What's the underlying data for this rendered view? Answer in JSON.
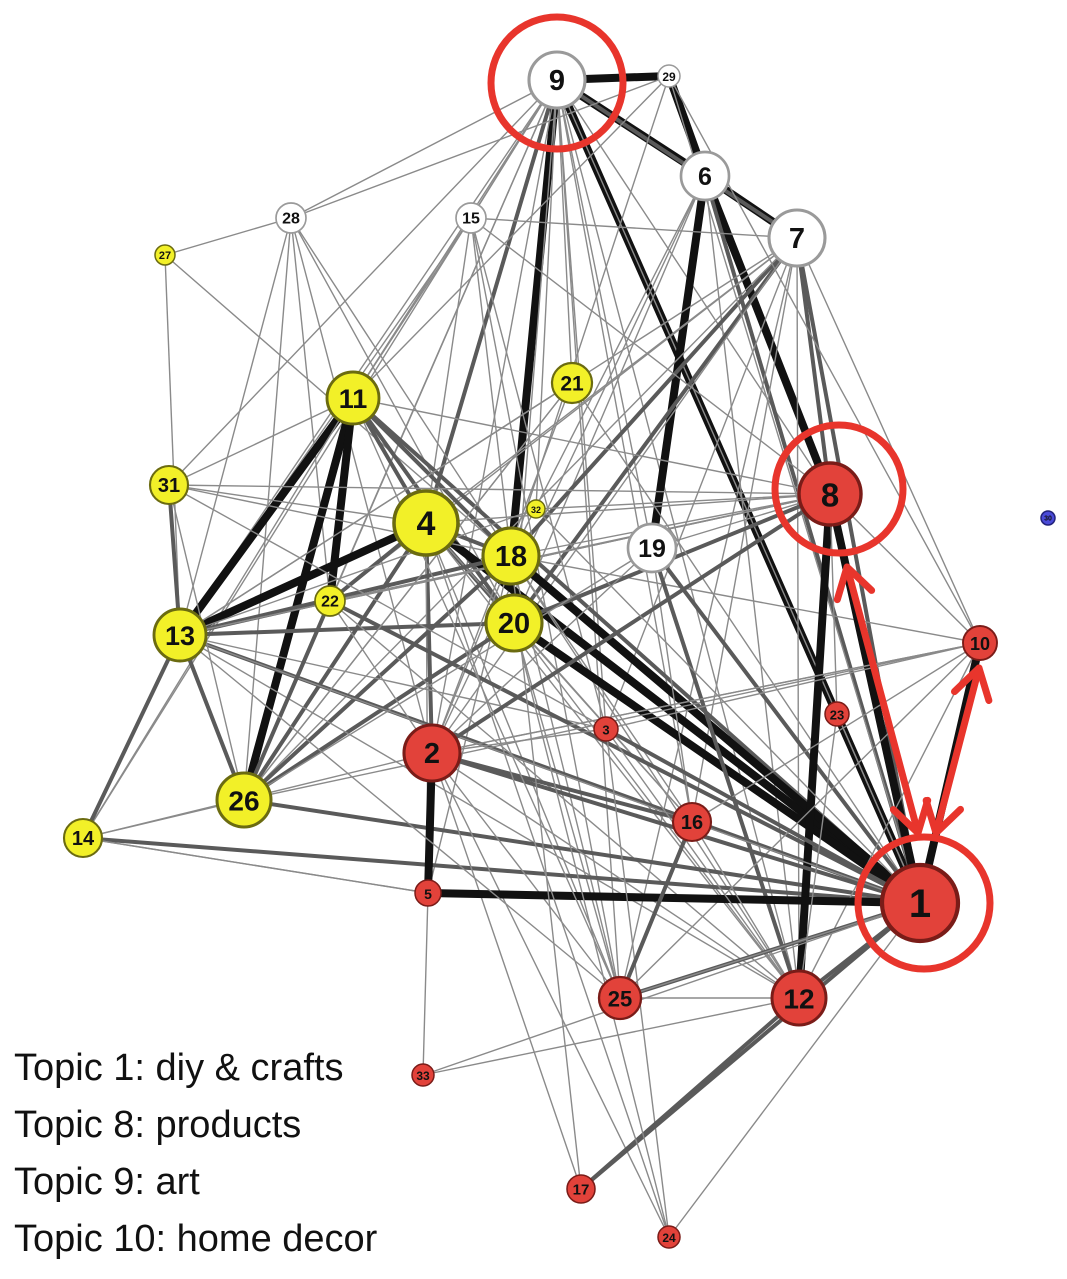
{
  "colors": {
    "yellow": "#f2f028",
    "red": "#e2423a",
    "white": "#ffffff",
    "blue": "#4a4ad8",
    "highlight": "#e8352c"
  },
  "nodes": [
    {
      "id": "1",
      "label": "1",
      "group": "red"
    },
    {
      "id": "2",
      "label": "2",
      "group": "red"
    },
    {
      "id": "3",
      "label": "3",
      "group": "red"
    },
    {
      "id": "4",
      "label": "4",
      "group": "yellow"
    },
    {
      "id": "5",
      "label": "5",
      "group": "red"
    },
    {
      "id": "6",
      "label": "6",
      "group": "white"
    },
    {
      "id": "7",
      "label": "7",
      "group": "white"
    },
    {
      "id": "8",
      "label": "8",
      "group": "red"
    },
    {
      "id": "9",
      "label": "9",
      "group": "white"
    },
    {
      "id": "10",
      "label": "10",
      "group": "red"
    },
    {
      "id": "11",
      "label": "11",
      "group": "yellow"
    },
    {
      "id": "12",
      "label": "12",
      "group": "red"
    },
    {
      "id": "13",
      "label": "13",
      "group": "yellow"
    },
    {
      "id": "14",
      "label": "14",
      "group": "yellow"
    },
    {
      "id": "15",
      "label": "15",
      "group": "white"
    },
    {
      "id": "16",
      "label": "16",
      "group": "red"
    },
    {
      "id": "17",
      "label": "17",
      "group": "red"
    },
    {
      "id": "18",
      "label": "18",
      "group": "yellow"
    },
    {
      "id": "19",
      "label": "19",
      "group": "white"
    },
    {
      "id": "20",
      "label": "20",
      "group": "yellow"
    },
    {
      "id": "21",
      "label": "21",
      "group": "yellow"
    },
    {
      "id": "22",
      "label": "22",
      "group": "yellow"
    },
    {
      "id": "23",
      "label": "23",
      "group": "red"
    },
    {
      "id": "24",
      "label": "24",
      "group": "red"
    },
    {
      "id": "25",
      "label": "25",
      "group": "red"
    },
    {
      "id": "26",
      "label": "26",
      "group": "yellow"
    },
    {
      "id": "27",
      "label": "27",
      "group": "yellow"
    },
    {
      "id": "28",
      "label": "28",
      "group": "white"
    },
    {
      "id": "29",
      "label": "29",
      "group": "white"
    },
    {
      "id": "30",
      "label": "30",
      "group": "blue"
    },
    {
      "id": "31",
      "label": "31",
      "group": "yellow"
    },
    {
      "id": "32",
      "label": "32",
      "group": "yellow"
    },
    {
      "id": "33",
      "label": "33",
      "group": "red"
    }
  ],
  "edges": [
    [
      "9",
      "29",
      3
    ],
    [
      "29",
      "6",
      3
    ],
    [
      "9",
      "6",
      3
    ],
    [
      "6",
      "7",
      3
    ],
    [
      "9",
      "7",
      2
    ],
    [
      "9",
      "18",
      3
    ],
    [
      "9",
      "1",
      3
    ],
    [
      "9",
      "4",
      2
    ],
    [
      "9",
      "11",
      1
    ],
    [
      "9",
      "13",
      1
    ],
    [
      "9",
      "22",
      1
    ],
    [
      "9",
      "28",
      1
    ],
    [
      "9",
      "15",
      1
    ],
    [
      "9",
      "31",
      1
    ],
    [
      "9",
      "20",
      1
    ],
    [
      "9",
      "21",
      1
    ],
    [
      "9",
      "19",
      1
    ],
    [
      "9",
      "2",
      1
    ],
    [
      "9",
      "26",
      1
    ],
    [
      "9",
      "8",
      1
    ],
    [
      "9",
      "16",
      1
    ],
    [
      "9",
      "12",
      1
    ],
    [
      "9",
      "25",
      1
    ],
    [
      "9",
      "3",
      1
    ],
    [
      "9",
      "23",
      1
    ],
    [
      "9",
      "32",
      1
    ],
    [
      "9",
      "14",
      1
    ],
    [
      "6",
      "19",
      3
    ],
    [
      "6",
      "8",
      3
    ],
    [
      "6",
      "1",
      2
    ],
    [
      "6",
      "18",
      1
    ],
    [
      "6",
      "2",
      1
    ],
    [
      "6",
      "20",
      1
    ],
    [
      "6",
      "12",
      1
    ],
    [
      "7",
      "8",
      2
    ],
    [
      "7",
      "1",
      2
    ],
    [
      "7",
      "10",
      1
    ],
    [
      "7",
      "18",
      2
    ],
    [
      "7",
      "20",
      2
    ],
    [
      "7",
      "4",
      1
    ],
    [
      "7",
      "13",
      1
    ],
    [
      "7",
      "22",
      1
    ],
    [
      "7",
      "2",
      1
    ],
    [
      "7",
      "16",
      1
    ],
    [
      "7",
      "25",
      1
    ],
    [
      "7",
      "26",
      1
    ],
    [
      "7",
      "3",
      1
    ],
    [
      "7",
      "12",
      1
    ],
    [
      "7",
      "15",
      1
    ],
    [
      "29",
      "1",
      1
    ],
    [
      "29",
      "18",
      1
    ],
    [
      "29",
      "28",
      1
    ],
    [
      "29",
      "11",
      1
    ],
    [
      "29",
      "10",
      1
    ],
    [
      "28",
      "27",
      1
    ],
    [
      "28",
      "13",
      1
    ],
    [
      "28",
      "26",
      1
    ],
    [
      "28",
      "18",
      1
    ],
    [
      "28",
      "20",
      1
    ],
    [
      "28",
      "2",
      1
    ],
    [
      "28",
      "22",
      1
    ],
    [
      "15",
      "4",
      1
    ],
    [
      "15",
      "11",
      1
    ],
    [
      "15",
      "18",
      1
    ],
    [
      "15",
      "13",
      1
    ],
    [
      "15",
      "25",
      1
    ],
    [
      "15",
      "3",
      1
    ],
    [
      "15",
      "8",
      1
    ],
    [
      "27",
      "13",
      1
    ],
    [
      "27",
      "18",
      1
    ],
    [
      "11",
      "13",
      3
    ],
    [
      "11",
      "26",
      3
    ],
    [
      "11",
      "22",
      3
    ],
    [
      "11",
      "4",
      2
    ],
    [
      "11",
      "18",
      2
    ],
    [
      "11",
      "20",
      2
    ],
    [
      "11",
      "8",
      1
    ],
    [
      "11",
      "1",
      2
    ],
    [
      "11",
      "14",
      1
    ],
    [
      "11",
      "31",
      1
    ],
    [
      "4",
      "13",
      3
    ],
    [
      "4",
      "26",
      2
    ],
    [
      "4",
      "1",
      3
    ],
    [
      "4",
      "18",
      2
    ],
    [
      "4",
      "20",
      2
    ],
    [
      "4",
      "2",
      2
    ],
    [
      "4",
      "16",
      1
    ],
    [
      "4",
      "12",
      1
    ],
    [
      "4",
      "22",
      2
    ],
    [
      "4",
      "31",
      1
    ],
    [
      "4",
      "8",
      1
    ],
    [
      "4",
      "25",
      1
    ],
    [
      "4",
      "5",
      1
    ],
    [
      "18",
      "1",
      3
    ],
    [
      "18",
      "13",
      2
    ],
    [
      "18",
      "8",
      1
    ],
    [
      "18",
      "26",
      2
    ],
    [
      "18",
      "2",
      1
    ],
    [
      "18",
      "16",
      1
    ],
    [
      "18",
      "31",
      1
    ],
    [
      "18",
      "25",
      1
    ],
    [
      "18",
      "10",
      1
    ],
    [
      "18",
      "5",
      1
    ],
    [
      "18",
      "12",
      1
    ],
    [
      "20",
      "1",
      3
    ],
    [
      "20",
      "13",
      2
    ],
    [
      "20",
      "26",
      2
    ],
    [
      "20",
      "8",
      2
    ],
    [
      "20",
      "12",
      1
    ],
    [
      "20",
      "25",
      1
    ],
    [
      "20",
      "16",
      1
    ],
    [
      "13",
      "31",
      2
    ],
    [
      "13",
      "26",
      2
    ],
    [
      "13",
      "14",
      2
    ],
    [
      "13",
      "1",
      2
    ],
    [
      "13",
      "16",
      1
    ],
    [
      "13",
      "3",
      1
    ],
    [
      "13",
      "22",
      2
    ],
    [
      "13",
      "8",
      1
    ],
    [
      "13",
      "12",
      1
    ],
    [
      "31",
      "26",
      1
    ],
    [
      "31",
      "8",
      1
    ],
    [
      "31",
      "1",
      1
    ],
    [
      "22",
      "26",
      2
    ],
    [
      "22",
      "8",
      1
    ],
    [
      "22",
      "1",
      2
    ],
    [
      "22",
      "12",
      1
    ],
    [
      "22",
      "2",
      1
    ],
    [
      "26",
      "14",
      1
    ],
    [
      "26",
      "1",
      2
    ],
    [
      "26",
      "10",
      1
    ],
    [
      "26",
      "19",
      1
    ],
    [
      "26",
      "21",
      1
    ],
    [
      "14",
      "1",
      2
    ],
    [
      "14",
      "5",
      1
    ],
    [
      "14",
      "2",
      1
    ],
    [
      "21",
      "13",
      1
    ],
    [
      "21",
      "26",
      1
    ],
    [
      "21",
      "1",
      1
    ],
    [
      "21",
      "2",
      1
    ],
    [
      "19",
      "1",
      2
    ],
    [
      "19",
      "8",
      1
    ],
    [
      "19",
      "12",
      2
    ],
    [
      "19",
      "2",
      1
    ],
    [
      "19",
      "16",
      1
    ],
    [
      "8",
      "1",
      3
    ],
    [
      "8",
      "12",
      3
    ],
    [
      "8",
      "2",
      2
    ],
    [
      "8",
      "13",
      1
    ],
    [
      "8",
      "10",
      1
    ],
    [
      "8",
      "23",
      1
    ],
    [
      "8",
      "32",
      1
    ],
    [
      "10",
      "1",
      3
    ],
    [
      "10",
      "12",
      1
    ],
    [
      "10",
      "2",
      1
    ],
    [
      "10",
      "3",
      1
    ],
    [
      "10",
      "16",
      1
    ],
    [
      "10",
      "25",
      1
    ],
    [
      "2",
      "5",
      3
    ],
    [
      "2",
      "16",
      2
    ],
    [
      "2",
      "1",
      2
    ],
    [
      "2",
      "12",
      1
    ],
    [
      "2",
      "25",
      1
    ],
    [
      "2",
      "17",
      1
    ],
    [
      "2",
      "24",
      1
    ],
    [
      "2",
      "10",
      1
    ],
    [
      "2",
      "3",
      1
    ],
    [
      "5",
      "1",
      3
    ],
    [
      "5",
      "33",
      1
    ],
    [
      "5",
      "14",
      1
    ],
    [
      "3",
      "1",
      2
    ],
    [
      "3",
      "12",
      1
    ],
    [
      "3",
      "24",
      1
    ],
    [
      "16",
      "1",
      1
    ],
    [
      "16",
      "25",
      2
    ],
    [
      "16",
      "12",
      1
    ],
    [
      "1",
      "12",
      2
    ],
    [
      "1",
      "25",
      2
    ],
    [
      "1",
      "17",
      2
    ],
    [
      "1",
      "33",
      1
    ],
    [
      "1",
      "24",
      1
    ],
    [
      "1",
      "23",
      1
    ],
    [
      "12",
      "17",
      2
    ],
    [
      "12",
      "25",
      1
    ],
    [
      "12",
      "23",
      1
    ],
    [
      "25",
      "13",
      1
    ],
    [
      "25",
      "11",
      1
    ],
    [
      "25",
      "1",
      1
    ],
    [
      "33",
      "12",
      1
    ],
    [
      "17",
      "18",
      1
    ],
    [
      "24",
      "4",
      1
    ],
    [
      "24",
      "20",
      1
    ],
    [
      "23",
      "1",
      1
    ],
    [
      "32",
      "13",
      1
    ],
    [
      "32",
      "1",
      1
    ]
  ],
  "legend": [
    "Topic 1: diy & crafts",
    "Topic 8: products",
    "Topic 9: art",
    "Topic 10: home decor"
  ]
}
